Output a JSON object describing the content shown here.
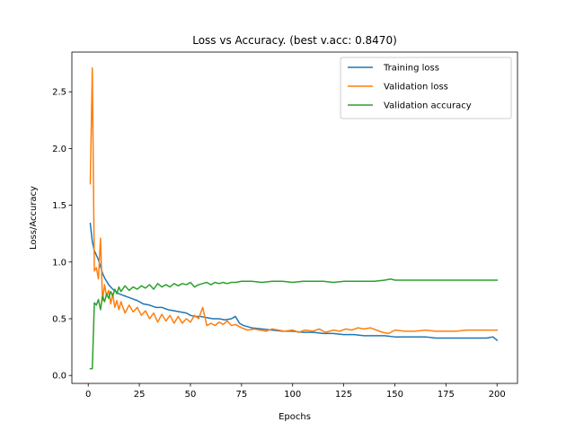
{
  "chart_data": {
    "type": "line",
    "title": "Loss vs Accuracy. (best v.acc: 0.8470)",
    "xlabel": "Epochs",
    "ylabel": "Loss/Accuracy",
    "xlim": [
      -8,
      210
    ],
    "ylim": [
      -0.07,
      2.85
    ],
    "xticks": [
      0,
      25,
      50,
      75,
      100,
      125,
      150,
      175,
      200
    ],
    "yticks": [
      0.0,
      0.5,
      1.0,
      1.5,
      2.0,
      2.5
    ],
    "xtick_labels": [
      "0",
      "25",
      "50",
      "75",
      "100",
      "125",
      "150",
      "175",
      "200"
    ],
    "ytick_labels": [
      "0.0",
      "0.5",
      "1.0",
      "1.5",
      "2.0",
      "2.5"
    ],
    "grid": false,
    "legend_position": "top-right",
    "series": [
      {
        "name": "Training loss",
        "color": "#1f77b4",
        "points": [
          [
            1,
            1.34
          ],
          [
            2,
            1.18
          ],
          [
            3,
            1.1
          ],
          [
            4,
            1.06
          ],
          [
            5,
            1.02
          ],
          [
            6,
            0.96
          ],
          [
            7,
            0.9
          ],
          [
            8,
            0.86
          ],
          [
            10,
            0.8
          ],
          [
            12,
            0.76
          ],
          [
            15,
            0.72
          ],
          [
            18,
            0.7
          ],
          [
            21,
            0.68
          ],
          [
            24,
            0.66
          ],
          [
            27,
            0.63
          ],
          [
            30,
            0.62
          ],
          [
            33,
            0.6
          ],
          [
            36,
            0.6
          ],
          [
            39,
            0.58
          ],
          [
            42,
            0.57
          ],
          [
            45,
            0.56
          ],
          [
            48,
            0.55
          ],
          [
            50,
            0.53
          ],
          [
            52,
            0.52
          ],
          [
            55,
            0.52
          ],
          [
            58,
            0.51
          ],
          [
            61,
            0.5
          ],
          [
            64,
            0.5
          ],
          [
            67,
            0.49
          ],
          [
            70,
            0.5
          ],
          [
            72,
            0.52
          ],
          [
            74,
            0.46
          ],
          [
            76,
            0.44
          ],
          [
            80,
            0.42
          ],
          [
            85,
            0.41
          ],
          [
            90,
            0.4
          ],
          [
            95,
            0.39
          ],
          [
            100,
            0.39
          ],
          [
            105,
            0.38
          ],
          [
            110,
            0.38
          ],
          [
            115,
            0.37
          ],
          [
            120,
            0.37
          ],
          [
            125,
            0.36
          ],
          [
            130,
            0.36
          ],
          [
            135,
            0.35
          ],
          [
            140,
            0.35
          ],
          [
            145,
            0.35
          ],
          [
            150,
            0.34
          ],
          [
            155,
            0.34
          ],
          [
            160,
            0.34
          ],
          [
            165,
            0.34
          ],
          [
            170,
            0.33
          ],
          [
            175,
            0.33
          ],
          [
            180,
            0.33
          ],
          [
            185,
            0.33
          ],
          [
            190,
            0.33
          ],
          [
            195,
            0.33
          ],
          [
            198,
            0.34
          ],
          [
            200,
            0.31
          ]
        ]
      },
      {
        "name": "Validation loss",
        "color": "#ff7f0e",
        "points": [
          [
            1,
            1.69
          ],
          [
            2,
            2.71
          ],
          [
            3,
            0.92
          ],
          [
            4,
            0.95
          ],
          [
            5,
            0.85
          ],
          [
            6,
            1.21
          ],
          [
            7,
            0.66
          ],
          [
            8,
            0.8
          ],
          [
            9,
            0.7
          ],
          [
            10,
            0.75
          ],
          [
            11,
            0.63
          ],
          [
            12,
            0.72
          ],
          [
            13,
            0.6
          ],
          [
            14,
            0.66
          ],
          [
            15,
            0.58
          ],
          [
            16,
            0.65
          ],
          [
            18,
            0.55
          ],
          [
            20,
            0.62
          ],
          [
            22,
            0.56
          ],
          [
            24,
            0.6
          ],
          [
            26,
            0.53
          ],
          [
            28,
            0.57
          ],
          [
            30,
            0.5
          ],
          [
            32,
            0.55
          ],
          [
            34,
            0.47
          ],
          [
            36,
            0.54
          ],
          [
            38,
            0.48
          ],
          [
            40,
            0.53
          ],
          [
            42,
            0.46
          ],
          [
            44,
            0.52
          ],
          [
            46,
            0.46
          ],
          [
            48,
            0.5
          ],
          [
            50,
            0.47
          ],
          [
            52,
            0.53
          ],
          [
            54,
            0.5
          ],
          [
            56,
            0.6
          ],
          [
            58,
            0.44
          ],
          [
            60,
            0.46
          ],
          [
            62,
            0.44
          ],
          [
            64,
            0.47
          ],
          [
            66,
            0.45
          ],
          [
            68,
            0.48
          ],
          [
            70,
            0.44
          ],
          [
            72,
            0.45
          ],
          [
            75,
            0.42
          ],
          [
            78,
            0.4
          ],
          [
            81,
            0.41
          ],
          [
            84,
            0.4
          ],
          [
            87,
            0.39
          ],
          [
            90,
            0.41
          ],
          [
            93,
            0.4
          ],
          [
            96,
            0.39
          ],
          [
            100,
            0.4
          ],
          [
            103,
            0.38
          ],
          [
            106,
            0.4
          ],
          [
            110,
            0.39
          ],
          [
            113,
            0.41
          ],
          [
            116,
            0.38
          ],
          [
            120,
            0.4
          ],
          [
            123,
            0.39
          ],
          [
            126,
            0.41
          ],
          [
            129,
            0.4
          ],
          [
            132,
            0.42
          ],
          [
            135,
            0.41
          ],
          [
            138,
            0.42
          ],
          [
            141,
            0.4
          ],
          [
            144,
            0.38
          ],
          [
            147,
            0.37
          ],
          [
            150,
            0.4
          ],
          [
            155,
            0.39
          ],
          [
            160,
            0.39
          ],
          [
            165,
            0.4
          ],
          [
            170,
            0.39
          ],
          [
            175,
            0.39
          ],
          [
            180,
            0.39
          ],
          [
            185,
            0.4
          ],
          [
            190,
            0.4
          ],
          [
            195,
            0.4
          ],
          [
            200,
            0.4
          ]
        ]
      },
      {
        "name": "Validation accuracy",
        "color": "#2ca02c",
        "points": [
          [
            1,
            0.06
          ],
          [
            2,
            0.06
          ],
          [
            3,
            0.64
          ],
          [
            4,
            0.62
          ],
          [
            5,
            0.67
          ],
          [
            6,
            0.58
          ],
          [
            7,
            0.7
          ],
          [
            8,
            0.65
          ],
          [
            9,
            0.72
          ],
          [
            10,
            0.68
          ],
          [
            11,
            0.74
          ],
          [
            12,
            0.7
          ],
          [
            13,
            0.76
          ],
          [
            14,
            0.72
          ],
          [
            15,
            0.78
          ],
          [
            16,
            0.74
          ],
          [
            18,
            0.79
          ],
          [
            20,
            0.75
          ],
          [
            22,
            0.78
          ],
          [
            24,
            0.76
          ],
          [
            26,
            0.79
          ],
          [
            28,
            0.77
          ],
          [
            30,
            0.8
          ],
          [
            32,
            0.76
          ],
          [
            34,
            0.81
          ],
          [
            36,
            0.78
          ],
          [
            38,
            0.8
          ],
          [
            40,
            0.78
          ],
          [
            42,
            0.81
          ],
          [
            44,
            0.79
          ],
          [
            46,
            0.81
          ],
          [
            48,
            0.8
          ],
          [
            50,
            0.82
          ],
          [
            52,
            0.78
          ],
          [
            54,
            0.8
          ],
          [
            56,
            0.81
          ],
          [
            58,
            0.82
          ],
          [
            60,
            0.8
          ],
          [
            62,
            0.82
          ],
          [
            64,
            0.81
          ],
          [
            66,
            0.82
          ],
          [
            68,
            0.81
          ],
          [
            70,
            0.82
          ],
          [
            72,
            0.82
          ],
          [
            75,
            0.83
          ],
          [
            80,
            0.83
          ],
          [
            85,
            0.82
          ],
          [
            90,
            0.83
          ],
          [
            95,
            0.83
          ],
          [
            100,
            0.82
          ],
          [
            105,
            0.83
          ],
          [
            110,
            0.83
          ],
          [
            115,
            0.83
          ],
          [
            120,
            0.82
          ],
          [
            125,
            0.83
          ],
          [
            130,
            0.83
          ],
          [
            135,
            0.83
          ],
          [
            140,
            0.83
          ],
          [
            145,
            0.84
          ],
          [
            148,
            0.85
          ],
          [
            150,
            0.84
          ],
          [
            155,
            0.84
          ],
          [
            160,
            0.84
          ],
          [
            165,
            0.84
          ],
          [
            170,
            0.84
          ],
          [
            175,
            0.84
          ],
          [
            180,
            0.84
          ],
          [
            185,
            0.84
          ],
          [
            190,
            0.84
          ],
          [
            195,
            0.84
          ],
          [
            200,
            0.84
          ]
        ]
      }
    ]
  }
}
